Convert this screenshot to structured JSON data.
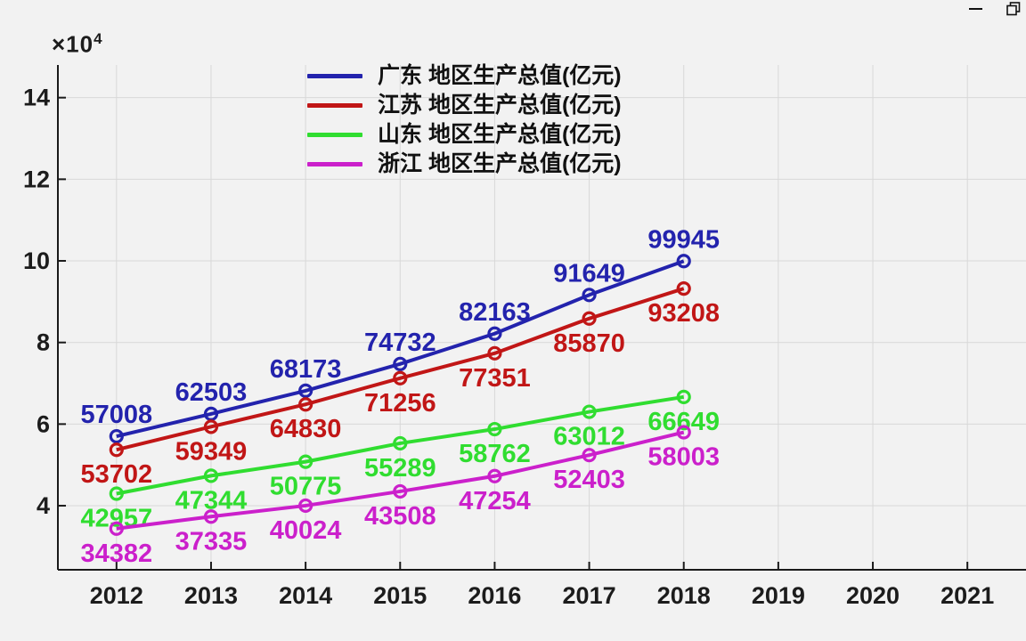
{
  "window": {
    "minimize_icon": "minimize-dash",
    "restore_icon": "overlapping-squares"
  },
  "colors": {
    "background": "#f2f2f2",
    "grid": "#d8d8d8",
    "axis": "#1a1a1a",
    "tick_text": "#1c1c1c",
    "series_blue": "#2323ad",
    "series_red": "#c11616",
    "series_green": "#30dd30",
    "series_magenta": "#cb20cb"
  },
  "chart_data": {
    "type": "line",
    "title": "",
    "xlabel": "",
    "ylabel": "",
    "y_axis_exponent_label": {
      "base": "×10",
      "exp": "4"
    },
    "x": [
      2012,
      2013,
      2014,
      2015,
      2016,
      2017,
      2018
    ],
    "xticks": [
      "2012",
      "2013",
      "2014",
      "2015",
      "2016",
      "2017",
      "2018",
      "2019",
      "2020",
      "2021"
    ],
    "xtick_values": [
      2012,
      2013,
      2014,
      2015,
      2016,
      2017,
      2018,
      2019,
      2020,
      2021
    ],
    "yticks": [
      "4",
      "6",
      "8",
      "10",
      "12",
      "14"
    ],
    "ytick_values": [
      40000,
      60000,
      80000,
      100000,
      120000,
      140000
    ],
    "xlim": [
      2011.38,
      2021.62
    ],
    "ylim": [
      24300,
      148000
    ],
    "grid": true,
    "legend_position": "top-center",
    "marker": "hollow-circle",
    "series": [
      {
        "name": "广东 地区生产总值(亿元)",
        "color": "#2323ad",
        "values": [
          57008,
          62503,
          68173,
          74732,
          82163,
          91649,
          99945
        ],
        "label_position": "above"
      },
      {
        "name": "江苏 地区生产总值(亿元)",
        "color": "#c11616",
        "values": [
          53702,
          59349,
          64830,
          71256,
          77351,
          85870,
          93208
        ],
        "label_position": "below"
      },
      {
        "name": "山东 地区生产总值(亿元)",
        "color": "#30dd30",
        "values": [
          42957,
          47344,
          50775,
          55289,
          58762,
          63012,
          66649
        ],
        "label_position": "below"
      },
      {
        "name": "浙江 地区生产总值(亿元)",
        "color": "#cb20cb",
        "values": [
          34382,
          37335,
          40024,
          43508,
          47254,
          52403,
          58003
        ],
        "label_position": "below"
      }
    ]
  }
}
